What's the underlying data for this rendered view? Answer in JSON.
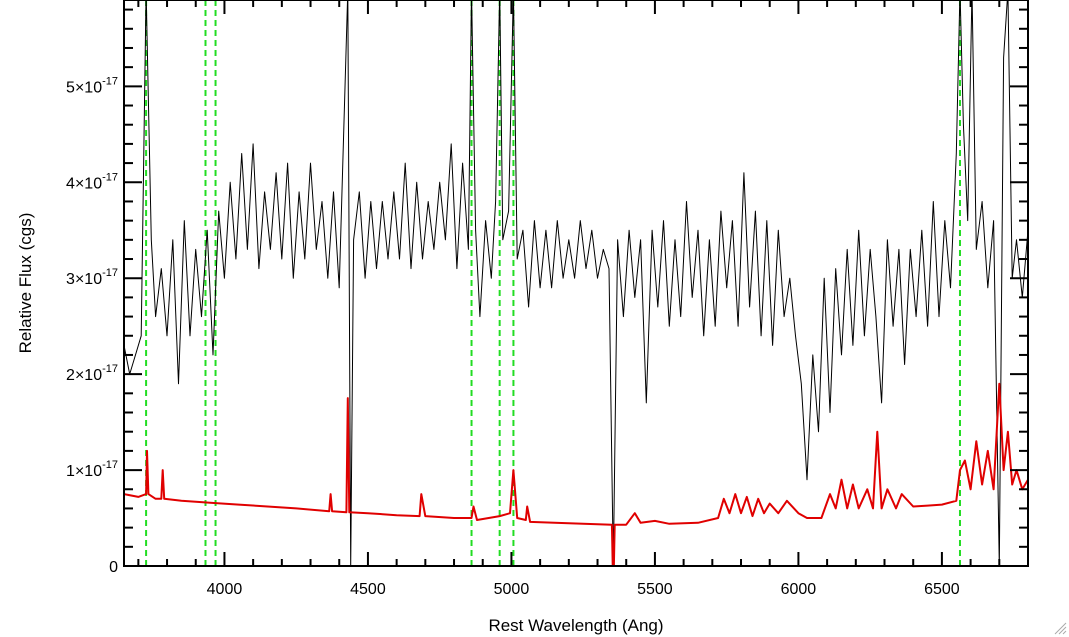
{
  "chart_data": {
    "type": "line",
    "title": "",
    "xlabel": "Rest Wavelength (Ang)",
    "ylabel": "Relative Flux (cgs)",
    "xlim": [
      3650,
      6800
    ],
    "ylim": [
      0,
      5.9e-17
    ],
    "x_ticks": [
      {
        "value": 4000,
        "label": "4000"
      },
      {
        "value": 4500,
        "label": "4500"
      },
      {
        "value": 5000,
        "label": "5000"
      },
      {
        "value": 5500,
        "label": "5500"
      },
      {
        "value": 6000,
        "label": "6000"
      },
      {
        "value": 6500,
        "label": "6500"
      }
    ],
    "y_ticks": [
      {
        "value": 0,
        "mantissa": "0",
        "exponent": ""
      },
      {
        "value": 1e-17,
        "mantissa": "1×10",
        "exponent": "-17"
      },
      {
        "value": 2e-17,
        "mantissa": "2×10",
        "exponent": "-17"
      },
      {
        "value": 3e-17,
        "mantissa": "3×10",
        "exponent": "-17"
      },
      {
        "value": 4e-17,
        "mantissa": "4×10",
        "exponent": "-17"
      },
      {
        "value": 5e-17,
        "mantissa": "5×10",
        "exponent": "-17"
      }
    ],
    "colors": {
      "spectrum": "#000000",
      "error": "#e00000",
      "lines": "#22dd22"
    },
    "vertical_markers": [
      3727,
      3934,
      3969,
      4861,
      4959,
      5007,
      6563
    ],
    "series": [
      {
        "color": "#000000",
        "points": [
          [
            3650,
            2.3e-17
          ],
          [
            3670,
            2e-17
          ],
          [
            3690,
            2.2e-17
          ],
          [
            3710,
            2.4e-17
          ],
          [
            3727,
            6e-17
          ],
          [
            3745,
            3.4e-17
          ],
          [
            3760,
            2.6e-17
          ],
          [
            3780,
            3.1e-17
          ],
          [
            3800,
            2.4e-17
          ],
          [
            3820,
            3.4e-17
          ],
          [
            3840,
            1.9e-17
          ],
          [
            3860,
            3.6e-17
          ],
          [
            3880,
            2.4e-17
          ],
          [
            3900,
            3.3e-17
          ],
          [
            3920,
            2.6e-17
          ],
          [
            3940,
            3.5e-17
          ],
          [
            3960,
            2.2e-17
          ],
          [
            3980,
            3.7e-17
          ],
          [
            4000,
            3e-17
          ],
          [
            4020,
            4e-17
          ],
          [
            4040,
            3.2e-17
          ],
          [
            4060,
            4.3e-17
          ],
          [
            4080,
            3.3e-17
          ],
          [
            4100,
            4.4e-17
          ],
          [
            4120,
            3.1e-17
          ],
          [
            4140,
            3.9e-17
          ],
          [
            4160,
            3.3e-17
          ],
          [
            4180,
            4.1e-17
          ],
          [
            4200,
            3.2e-17
          ],
          [
            4220,
            4.2e-17
          ],
          [
            4240,
            3e-17
          ],
          [
            4260,
            3.9e-17
          ],
          [
            4280,
            3.2e-17
          ],
          [
            4300,
            4.2e-17
          ],
          [
            4320,
            3.3e-17
          ],
          [
            4340,
            3.8e-17
          ],
          [
            4360,
            3e-17
          ],
          [
            4380,
            3.9e-17
          ],
          [
            4400,
            2.9e-17
          ],
          [
            4430,
            6e-17
          ],
          [
            4440,
            0.0
          ],
          [
            4450,
            3.4e-17
          ],
          [
            4470,
            3.9e-17
          ],
          [
            4490,
            3e-17
          ],
          [
            4510,
            3.8e-17
          ],
          [
            4530,
            3.1e-17
          ],
          [
            4550,
            3.8e-17
          ],
          [
            4570,
            3.2e-17
          ],
          [
            4590,
            3.9e-17
          ],
          [
            4610,
            3.2e-17
          ],
          [
            4630,
            4.2e-17
          ],
          [
            4650,
            3.1e-17
          ],
          [
            4670,
            4e-17
          ],
          [
            4690,
            3.2e-17
          ],
          [
            4710,
            3.8e-17
          ],
          [
            4730,
            3.3e-17
          ],
          [
            4750,
            4e-17
          ],
          [
            4770,
            3.4e-17
          ],
          [
            4790,
            4.4e-17
          ],
          [
            4810,
            3.1e-17
          ],
          [
            4830,
            4.2e-17
          ],
          [
            4850,
            3.3e-17
          ],
          [
            4861,
            6e-17
          ],
          [
            4875,
            3.5e-17
          ],
          [
            4890,
            2.6e-17
          ],
          [
            4910,
            3.6e-17
          ],
          [
            4930,
            3e-17
          ],
          [
            4945,
            3.8e-17
          ],
          [
            4959,
            6e-17
          ],
          [
            4970,
            3.4e-17
          ],
          [
            4990,
            3.7e-17
          ],
          [
            5007,
            6e-17
          ],
          [
            5020,
            3.2e-17
          ],
          [
            5040,
            3.5e-17
          ],
          [
            5060,
            2.7e-17
          ],
          [
            5080,
            3.6e-17
          ],
          [
            5100,
            2.9e-17
          ],
          [
            5120,
            3.5e-17
          ],
          [
            5140,
            2.9e-17
          ],
          [
            5160,
            3.6e-17
          ],
          [
            5180,
            3e-17
          ],
          [
            5200,
            3.4e-17
          ],
          [
            5220,
            3e-17
          ],
          [
            5240,
            3.6e-17
          ],
          [
            5260,
            3.1e-17
          ],
          [
            5280,
            3.5e-17
          ],
          [
            5300,
            3e-17
          ],
          [
            5320,
            3.3e-17
          ],
          [
            5340,
            3.1e-17
          ],
          [
            5355,
            0.0
          ],
          [
            5370,
            3.4e-17
          ],
          [
            5390,
            2.6e-17
          ],
          [
            5410,
            3.5e-17
          ],
          [
            5430,
            2.8e-17
          ],
          [
            5450,
            3.4e-17
          ],
          [
            5470,
            1.7e-17
          ],
          [
            5490,
            3.5e-17
          ],
          [
            5510,
            2.7e-17
          ],
          [
            5530,
            3.6e-17
          ],
          [
            5550,
            2.5e-17
          ],
          [
            5570,
            3.4e-17
          ],
          [
            5590,
            2.6e-17
          ],
          [
            5610,
            3.8e-17
          ],
          [
            5630,
            2.8e-17
          ],
          [
            5650,
            3.5e-17
          ],
          [
            5670,
            2.4e-17
          ],
          [
            5690,
            3.4e-17
          ],
          [
            5710,
            2.5e-17
          ],
          [
            5730,
            3.7e-17
          ],
          [
            5750,
            2.9e-17
          ],
          [
            5770,
            3.6e-17
          ],
          [
            5790,
            2.5e-17
          ],
          [
            5810,
            4.1e-17
          ],
          [
            5830,
            2.7e-17
          ],
          [
            5850,
            3.7e-17
          ],
          [
            5870,
            2.4e-17
          ],
          [
            5890,
            3.6e-17
          ],
          [
            5910,
            2.3e-17
          ],
          [
            5930,
            3.5e-17
          ],
          [
            5950,
            2.6e-17
          ],
          [
            5970,
            3e-17
          ],
          [
            5990,
            2.4e-17
          ],
          [
            6010,
            1.9e-17
          ],
          [
            6030,
            9e-18
          ],
          [
            6050,
            2.2e-17
          ],
          [
            6070,
            1.4e-17
          ],
          [
            6090,
            3e-17
          ],
          [
            6110,
            1.6e-17
          ],
          [
            6130,
            3.1e-17
          ],
          [
            6150,
            2.2e-17
          ],
          [
            6170,
            3.3e-17
          ],
          [
            6190,
            2.3e-17
          ],
          [
            6210,
            3.5e-17
          ],
          [
            6230,
            2.4e-17
          ],
          [
            6250,
            3.3e-17
          ],
          [
            6270,
            2.6e-17
          ],
          [
            6290,
            1.7e-17
          ],
          [
            6310,
            3.4e-17
          ],
          [
            6330,
            2.5e-17
          ],
          [
            6350,
            3.3e-17
          ],
          [
            6370,
            2.1e-17
          ],
          [
            6390,
            3.3e-17
          ],
          [
            6410,
            2.6e-17
          ],
          [
            6430,
            3.5e-17
          ],
          [
            6450,
            2.5e-17
          ],
          [
            6470,
            3.8e-17
          ],
          [
            6490,
            2.6e-17
          ],
          [
            6510,
            3.6e-17
          ],
          [
            6530,
            2.9e-17
          ],
          [
            6550,
            4.3e-17
          ],
          [
            6563,
            6e-17
          ],
          [
            6575,
            4.6e-17
          ],
          [
            6590,
            3.6e-17
          ],
          [
            6605,
            6e-17
          ],
          [
            6620,
            3.3e-17
          ],
          [
            6640,
            3.8e-17
          ],
          [
            6660,
            2.9e-17
          ],
          [
            6680,
            3.6e-17
          ],
          [
            6700,
            0.0
          ],
          [
            6715,
            5.3e-17
          ],
          [
            6730,
            6e-17
          ],
          [
            6745,
            3e-17
          ],
          [
            6760,
            3.4e-17
          ],
          [
            6780,
            2.8e-17
          ],
          [
            6800,
            3.5e-17
          ]
        ]
      },
      {
        "color": "#e00000",
        "points": [
          [
            3650,
            7.5e-18
          ],
          [
            3700,
            7.2e-18
          ],
          [
            3727,
            7.5e-18
          ],
          [
            3730,
            1.2e-17
          ],
          [
            3735,
            7.5e-18
          ],
          [
            3760,
            7e-18
          ],
          [
            3780,
            7e-18
          ],
          [
            3785,
            1e-17
          ],
          [
            3790,
            7e-18
          ],
          [
            3850,
            6.8e-18
          ],
          [
            3950,
            6.6e-18
          ],
          [
            4050,
            6.4e-18
          ],
          [
            4150,
            6.2e-18
          ],
          [
            4250,
            6e-18
          ],
          [
            4365,
            5.7e-18
          ],
          [
            4370,
            7.5e-18
          ],
          [
            4375,
            5.7e-18
          ],
          [
            4425,
            5.6e-18
          ],
          [
            4430,
            1.75e-17
          ],
          [
            4435,
            5.6e-18
          ],
          [
            4500,
            5.5e-18
          ],
          [
            4600,
            5.3e-18
          ],
          [
            4680,
            5.2e-18
          ],
          [
            4686,
            7.5e-18
          ],
          [
            4700,
            5.2e-18
          ],
          [
            4800,
            5e-18
          ],
          [
            4861,
            5e-18
          ],
          [
            4868,
            6.2e-18
          ],
          [
            4880,
            4.8e-18
          ],
          [
            4959,
            5.2e-18
          ],
          [
            4995,
            5.5e-18
          ],
          [
            5007,
            1e-17
          ],
          [
            5020,
            5e-18
          ],
          [
            5050,
            4.8e-18
          ],
          [
            5055,
            6.2e-18
          ],
          [
            5065,
            4.6e-18
          ],
          [
            5150,
            4.5e-18
          ],
          [
            5250,
            4.4e-18
          ],
          [
            5350,
            4.3e-18
          ],
          [
            5355,
            -3e-18
          ],
          [
            5360,
            4.3e-18
          ],
          [
            5400,
            4.3e-18
          ],
          [
            5430,
            5.5e-18
          ],
          [
            5450,
            4.5e-18
          ],
          [
            5500,
            4.7e-18
          ],
          [
            5550,
            4.4e-18
          ],
          [
            5650,
            4.5e-18
          ],
          [
            5720,
            5e-18
          ],
          [
            5740,
            7e-18
          ],
          [
            5760,
            5.5e-18
          ],
          [
            5780,
            7.5e-18
          ],
          [
            5800,
            5.5e-18
          ],
          [
            5820,
            7.2e-18
          ],
          [
            5840,
            5.2e-18
          ],
          [
            5860,
            7e-18
          ],
          [
            5880,
            5.5e-18
          ],
          [
            5900,
            6.5e-18
          ],
          [
            5930,
            5.5e-18
          ],
          [
            5960,
            6.8e-18
          ],
          [
            6000,
            5.5e-18
          ],
          [
            6030,
            5e-18
          ],
          [
            6080,
            5e-18
          ],
          [
            6110,
            7.5e-18
          ],
          [
            6130,
            6e-18
          ],
          [
            6150,
            9e-18
          ],
          [
            6170,
            6e-18
          ],
          [
            6190,
            8.5e-18
          ],
          [
            6210,
            6e-18
          ],
          [
            6240,
            8e-18
          ],
          [
            6260,
            6e-18
          ],
          [
            6275,
            1.4e-17
          ],
          [
            6290,
            6e-18
          ],
          [
            6310,
            8e-18
          ],
          [
            6340,
            6e-18
          ],
          [
            6360,
            7.5e-18
          ],
          [
            6400,
            6.2e-18
          ],
          [
            6450,
            6.3e-18
          ],
          [
            6500,
            6.4e-18
          ],
          [
            6550,
            6.8e-18
          ],
          [
            6563,
            1e-17
          ],
          [
            6580,
            1.1e-17
          ],
          [
            6600,
            8e-18
          ],
          [
            6620,
            1.3e-17
          ],
          [
            6640,
            8.5e-18
          ],
          [
            6660,
            1.2e-17
          ],
          [
            6680,
            8e-18
          ],
          [
            6700,
            1.9e-17
          ],
          [
            6715,
            1e-17
          ],
          [
            6730,
            1.4e-17
          ],
          [
            6745,
            8.5e-18
          ],
          [
            6760,
            1e-17
          ],
          [
            6780,
            8e-18
          ],
          [
            6800,
            9e-18
          ]
        ]
      }
    ]
  }
}
